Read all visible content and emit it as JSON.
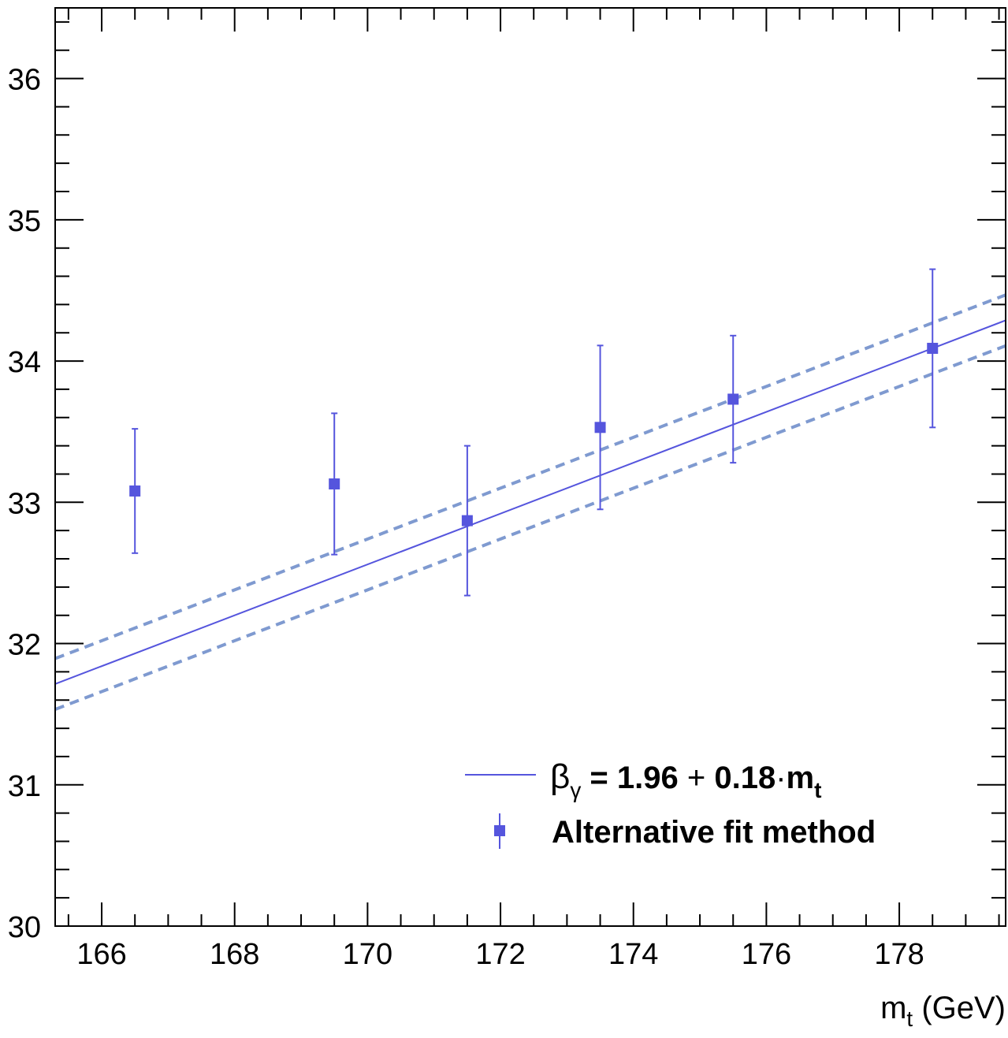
{
  "chart_data": {
    "type": "scatter",
    "title": "",
    "xlabel_main": "m",
    "xlabel_sub": "t",
    "xlabel_unit": " (GeV)",
    "ylabel": "",
    "xlim": [
      165.3,
      179.6
    ],
    "ylim": [
      30,
      36.5
    ],
    "x_ticks": [
      166,
      168,
      170,
      172,
      174,
      176,
      178
    ],
    "y_ticks": [
      30,
      31,
      32,
      33,
      34,
      35,
      36
    ],
    "grid": false,
    "legend_position": "bottom-right",
    "colors": {
      "points": "#5555dd",
      "fit_line": "#5555dd",
      "band": "#7f9ad0",
      "axis": "#000000"
    },
    "series": [
      {
        "kind": "points_with_errors",
        "legend_label": "Alternative fit method",
        "x": [
          166.5,
          169.5,
          171.5,
          173.5,
          175.5,
          178.5
        ],
        "y": [
          33.08,
          33.13,
          32.87,
          33.53,
          33.73,
          34.09
        ],
        "yerr": [
          0.44,
          0.5,
          0.53,
          0.58,
          0.45,
          0.56
        ]
      },
      {
        "kind": "line",
        "intercept": 1.96,
        "slope": 0.18,
        "x_range": [
          165.3,
          179.6
        ]
      },
      {
        "kind": "band",
        "style": "dashed",
        "half_width": 0.18
      }
    ],
    "legend": {
      "fit": {
        "beta": "β",
        "gamma": "γ",
        "equation": " = 1.96",
        "plus": " + ",
        "coef": "0.18",
        "dot": "·",
        "m": "m",
        "t": "t"
      }
    }
  }
}
